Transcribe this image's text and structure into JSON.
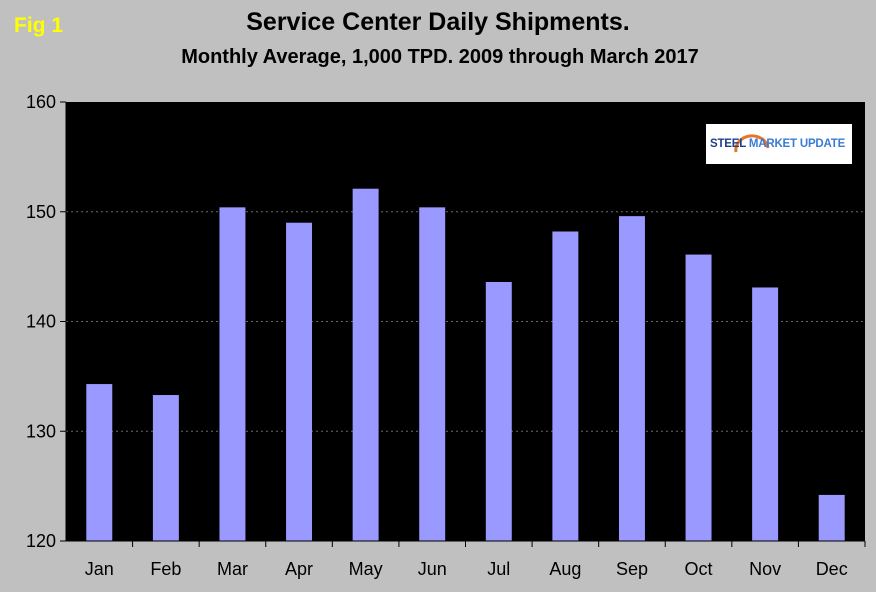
{
  "figure_label": "Fig 1",
  "logo": {
    "text_left": "STEEL",
    "text_right": "MARKET UPDATE",
    "accent_color": "#e8742a"
  },
  "chart_data": {
    "type": "bar",
    "title": "Service Center Daily Shipments.",
    "subtitle": "Monthly Average, 1,000 TPD.  2009 through March 2017",
    "categories": [
      "Jan",
      "Feb",
      "Mar",
      "Apr",
      "May",
      "Jun",
      "Jul",
      "Aug",
      "Sep",
      "Oct",
      "Nov",
      "Dec"
    ],
    "values": [
      134.3,
      133.3,
      150.4,
      149.0,
      152.1,
      150.4,
      143.6,
      148.2,
      149.6,
      146.1,
      143.1,
      124.2
    ],
    "ylim": [
      120,
      160
    ],
    "yticks": [
      "120",
      "130",
      "140",
      "150",
      "160"
    ],
    "xlabel": "",
    "ylabel": "",
    "grid": true,
    "plot_background": "#000000",
    "bar_color": "#9999ff",
    "page_background": "#c0c0c0"
  }
}
